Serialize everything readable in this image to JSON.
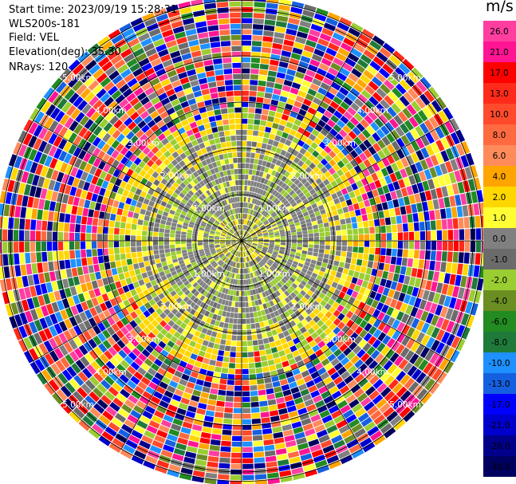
{
  "header": {
    "start_time": "Start time: 2023/09/19 15:28:31",
    "instrument": "WLS200s-181",
    "field": "Field: VEL",
    "elevation": "Elevation(deg): 35.30",
    "nrays": "NRays: 120"
  },
  "colorbar": {
    "unit": "m/s",
    "ticks": [
      "26.0",
      "21.0",
      "17.0",
      "13.0",
      "10.0",
      "8.0",
      "6.0",
      "4.0",
      "2.0",
      "1.0",
      "0.0",
      "-1.0",
      "-2.0",
      "-4.0",
      "-6.0",
      "-8.0",
      "-10.0",
      "-13.0",
      "-17.0",
      "-21.0",
      "-26.0",
      "-30.0"
    ],
    "colors": [
      "#ff3ea0",
      "#ff1493",
      "#ff0000",
      "#ff2a1a",
      "#ff4a2c",
      "#ff6a40",
      "#ff8b5a",
      "#ffa500",
      "#ffd700",
      "#ffff33",
      "#808080",
      "#6b6b6b",
      "#9acd32",
      "#6b8e23",
      "#228b22",
      "#1f7a3a",
      "#1e90ff",
      "#1560e0",
      "#0000ff",
      "#0000cd",
      "#00008b",
      "#000060"
    ]
  },
  "chart_data": {
    "type": "heatmap",
    "projection": "polar PPI",
    "field": "VEL",
    "n_rays": 120,
    "range_rings_km": [
      1.0,
      2.0,
      3.0,
      4.0,
      5.0
    ],
    "ring_labels": [
      "1.00km",
      "2.00km",
      "3.00km",
      "4.00km",
      "5.00km"
    ],
    "spokes": 12,
    "max_range_km": 5.2,
    "center_field": "small-magnitude velocities (-2 to 2 m/s) near center, noisy full-range velocities beyond ~2.5 km"
  }
}
